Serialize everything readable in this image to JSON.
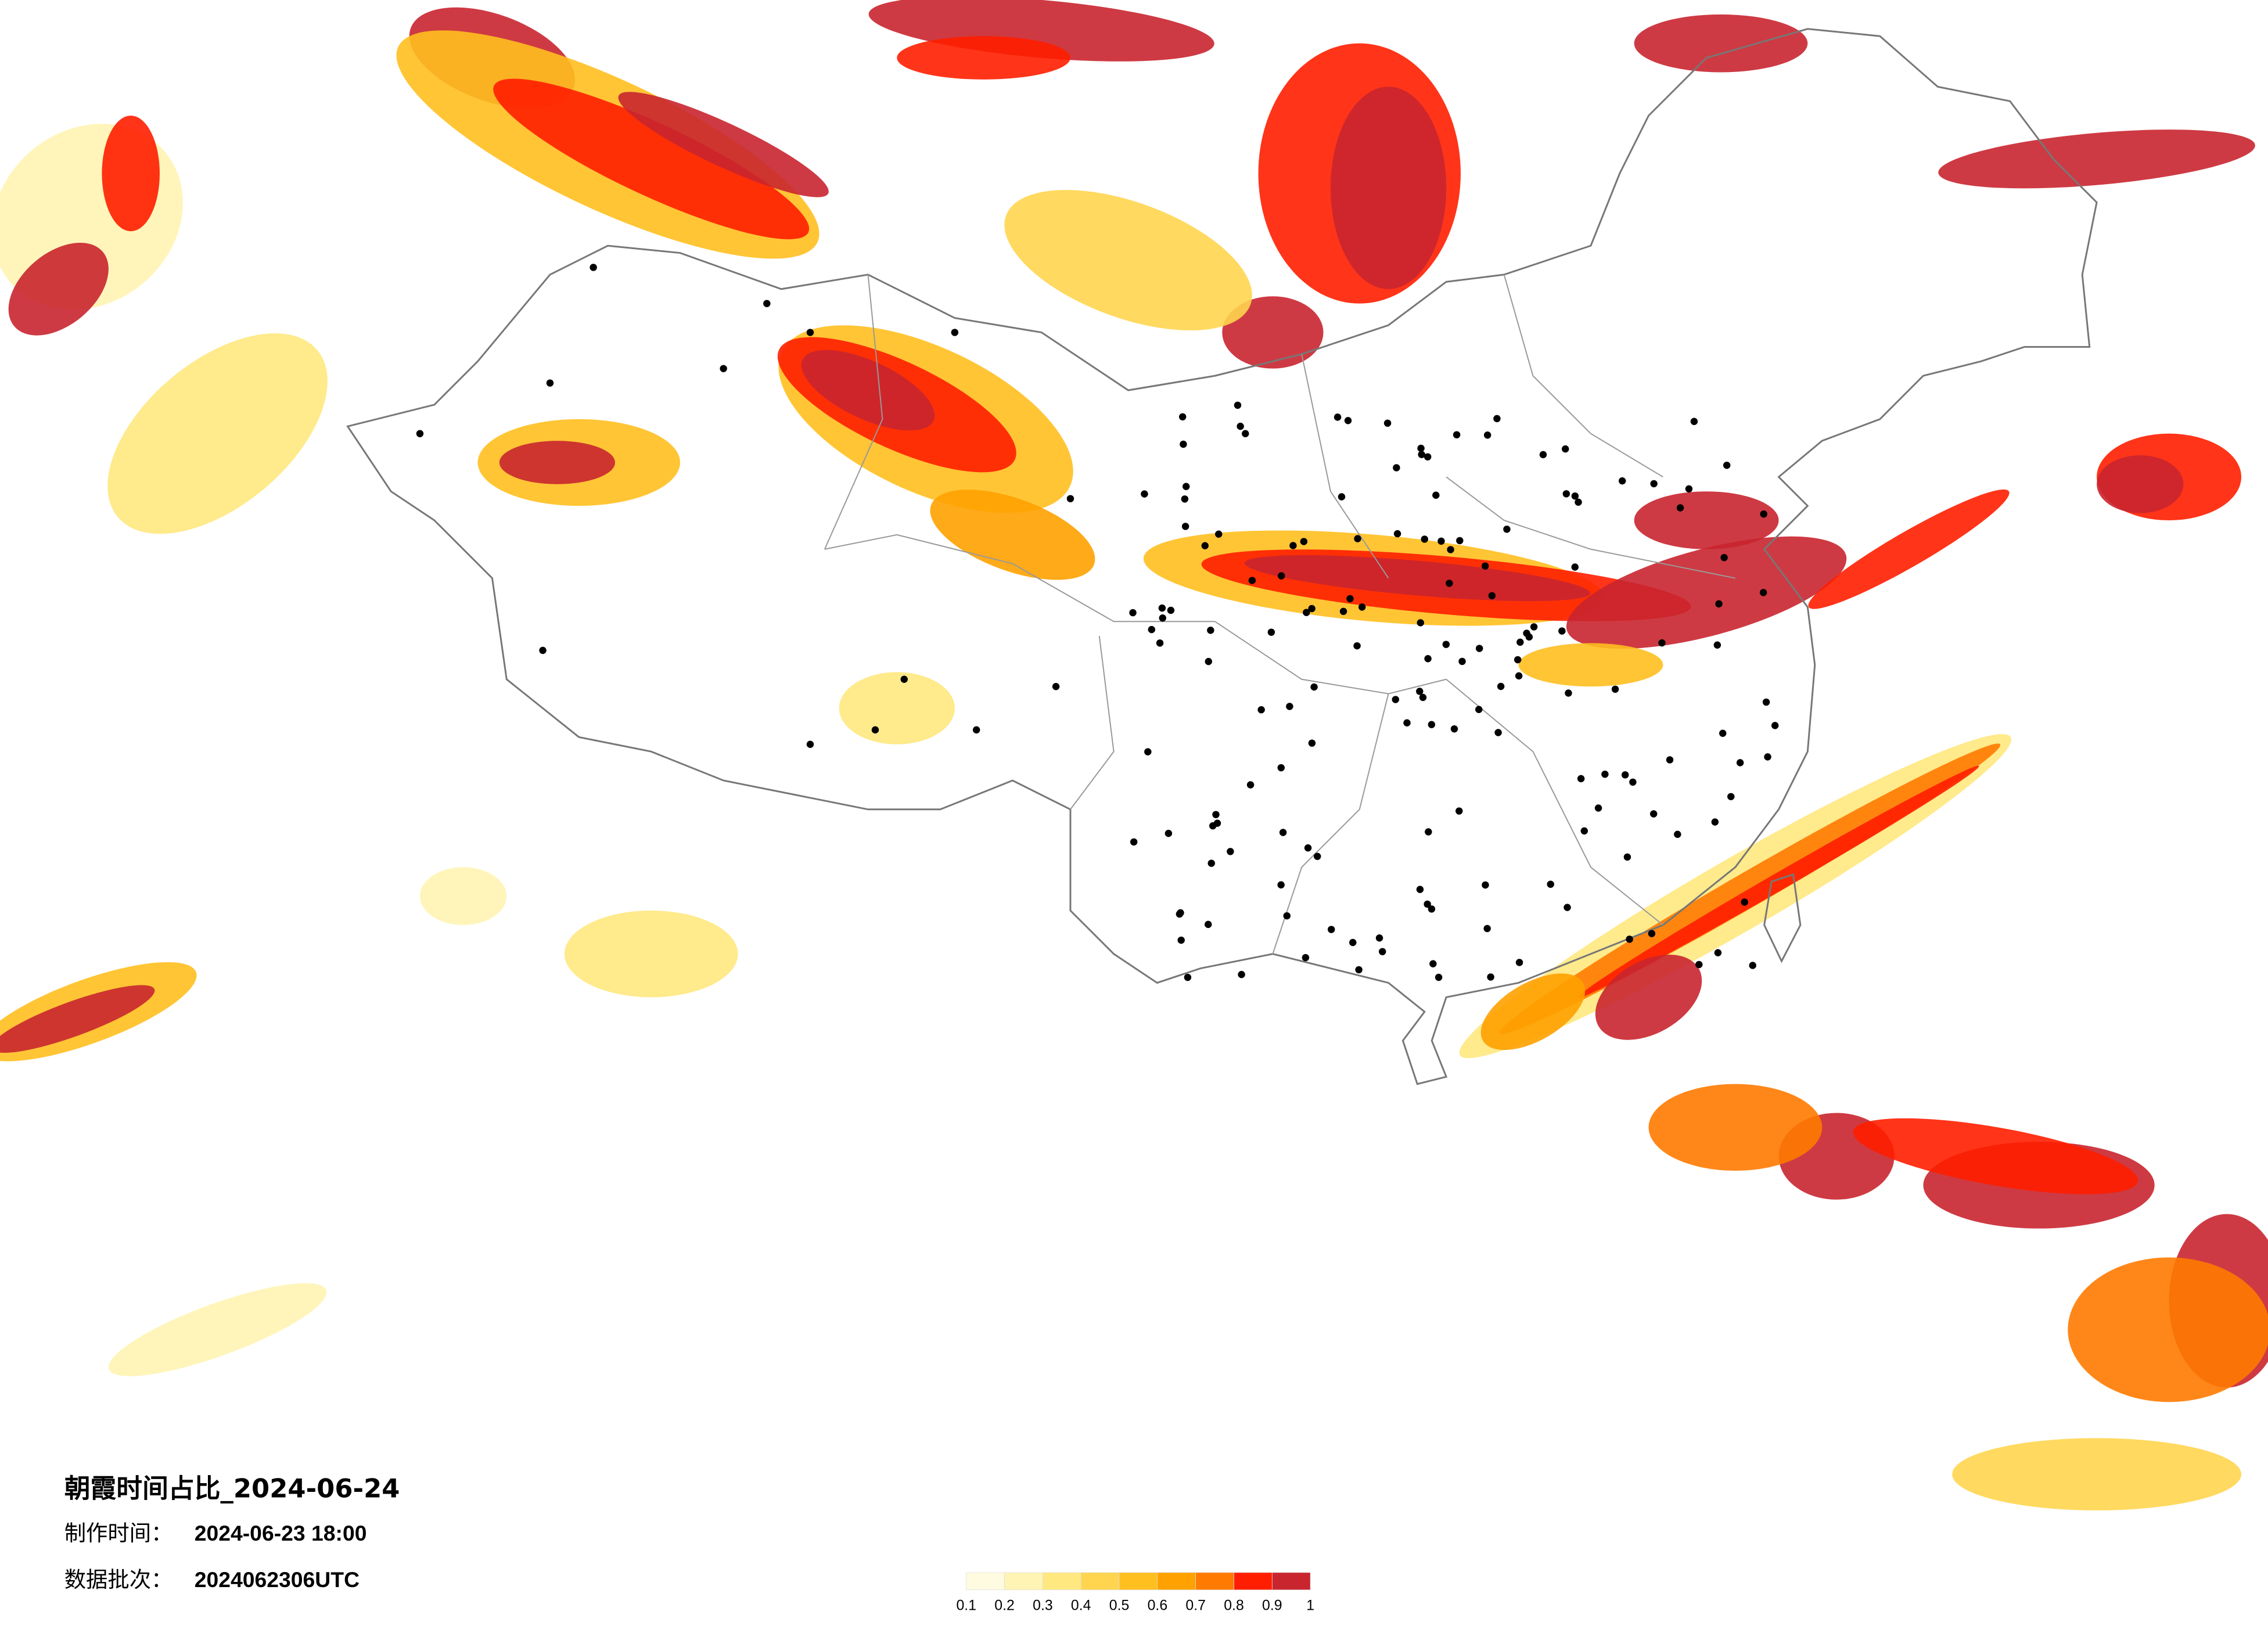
{
  "title": "朝霞时间占比_2024-06-24",
  "info": [
    {
      "label": "制作时间：",
      "value": "2024-06-23 18:00"
    },
    {
      "label": "数据批次：",
      "value": "2024062306UTC"
    }
  ],
  "colorbar": {
    "ticks": [
      0.1,
      0.2,
      0.3,
      0.4,
      0.5,
      0.6,
      0.7,
      0.8,
      0.9,
      1
    ],
    "colors": [
      "#fffbe0",
      "#fff4b3",
      "#ffe880",
      "#ffd54f",
      "#ffbf1f",
      "#ffa100",
      "#ff7a00",
      "#ff1e00",
      "#c9252f"
    ]
  }
}
